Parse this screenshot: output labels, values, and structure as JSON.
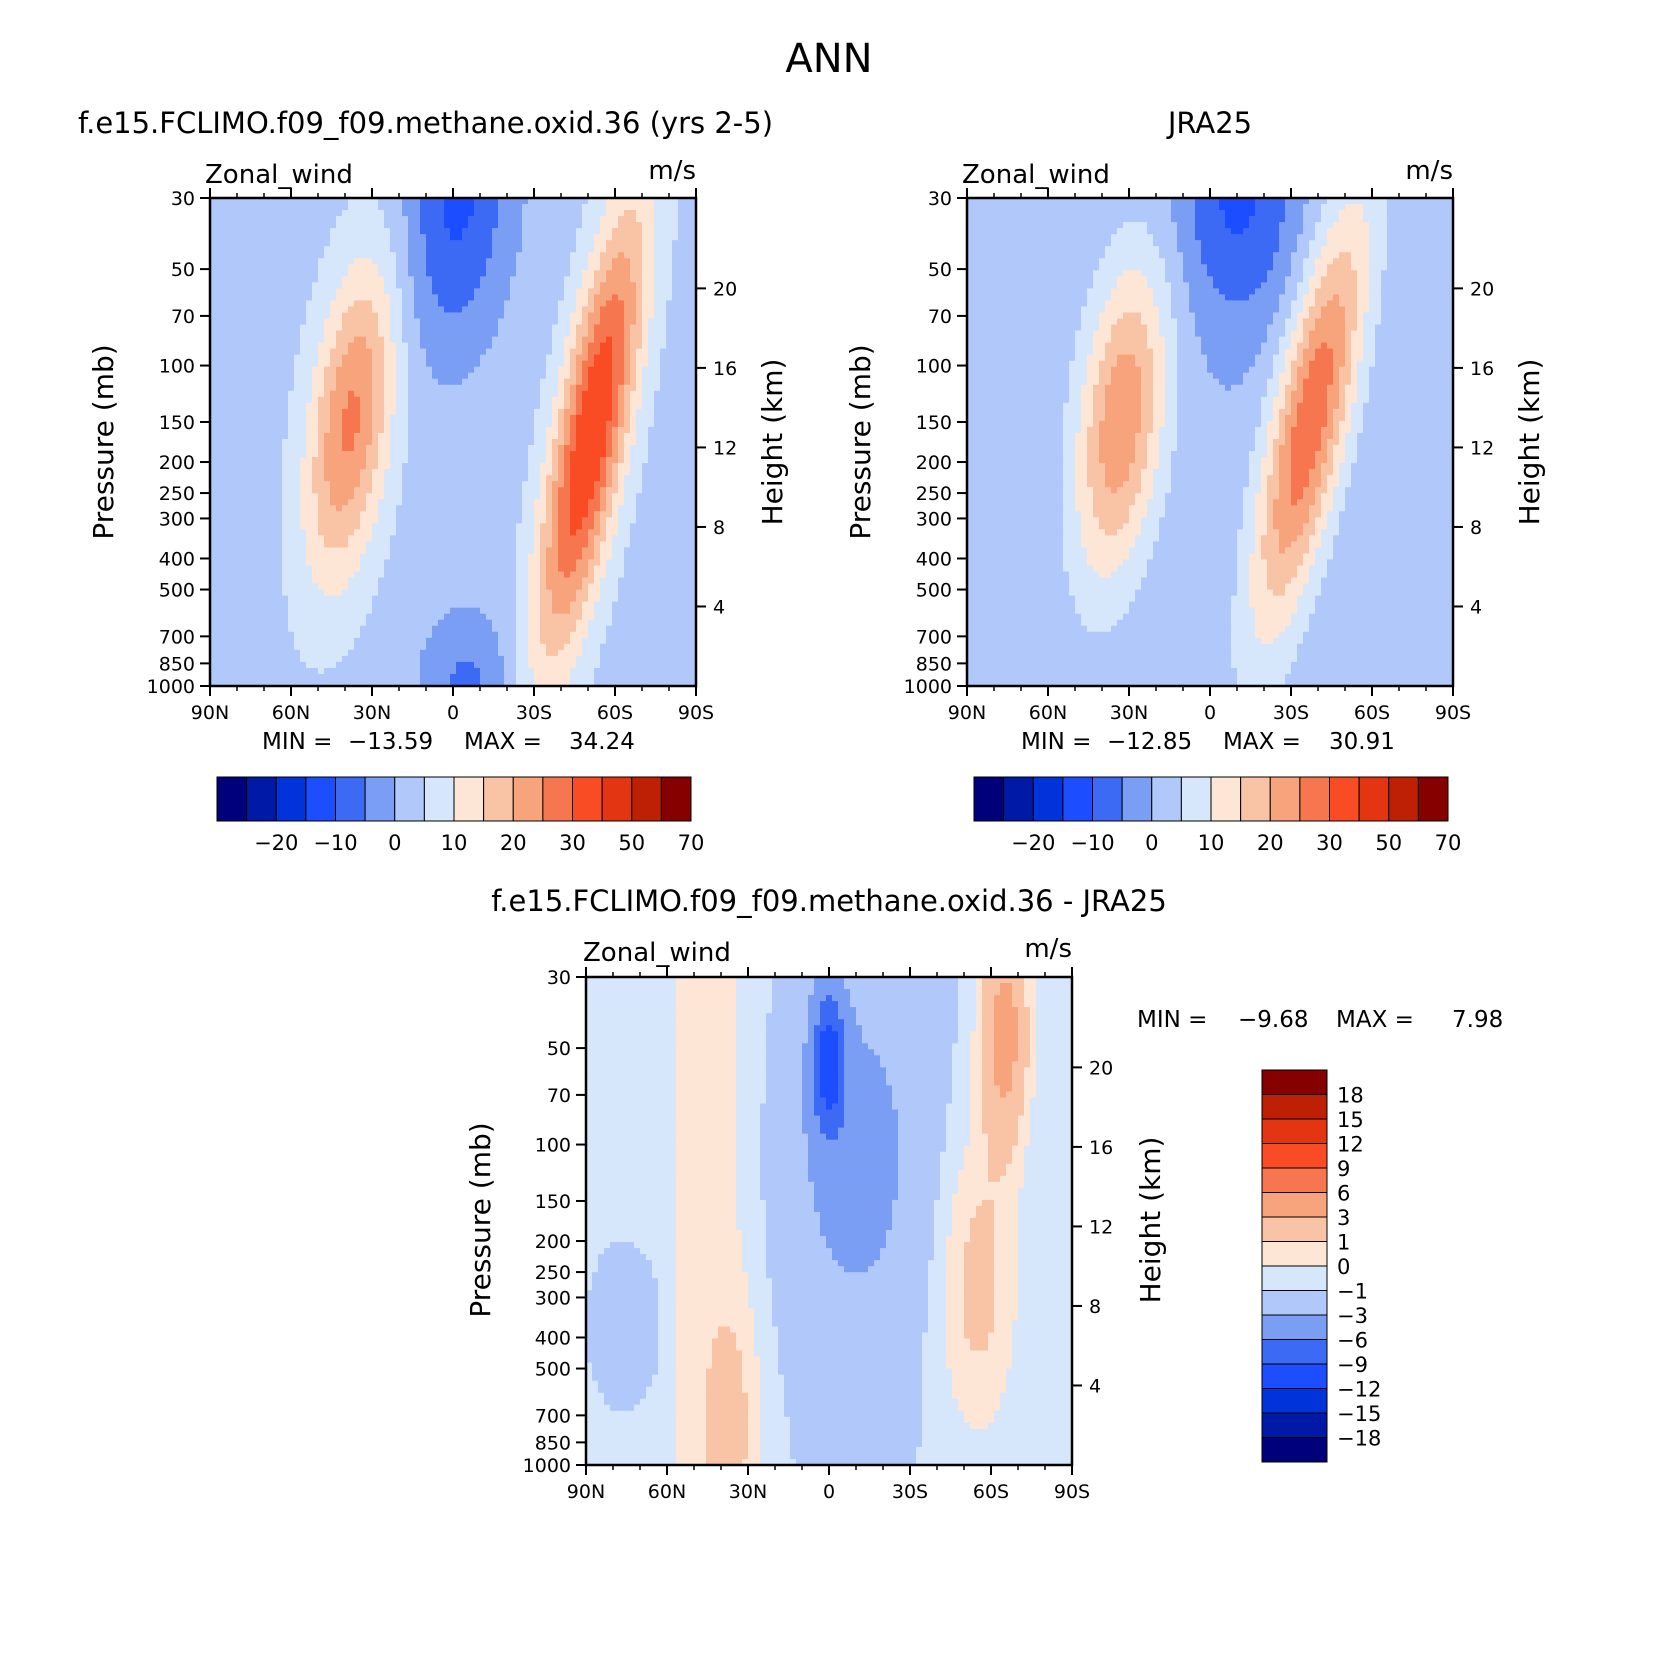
{
  "figure": {
    "title": "ANN"
  },
  "chart_data": [
    {
      "type": "heatmap",
      "title": "f.e15.FCLIMO.f09_f09.methane.oxid.36 (yrs 2-5)",
      "variable": "Zonal_wind",
      "units": "m/s",
      "ylabel": "Pressure (mb)",
      "y2label": "Height (km)",
      "x_ticks": [
        "90N",
        "60N",
        "30N",
        "0",
        "30S",
        "60S",
        "90S"
      ],
      "y_ticks": [
        "30",
        "50",
        "70",
        "100",
        "150",
        "200",
        "250",
        "300",
        "400",
        "500",
        "700",
        "850",
        "1000"
      ],
      "y2_ticks": [
        "20",
        "16",
        "12",
        "8",
        "4"
      ],
      "ylim": [
        1000,
        30
      ],
      "stats": {
        "min_label": "MIN =",
        "min": "-13.59",
        "max_label": "MAX =",
        "max": "34.24"
      },
      "colorbar": {
        "orientation": "horizontal",
        "levels": [
          -25,
          -20,
          -15,
          -10,
          -5,
          0,
          5,
          10,
          15,
          20,
          25,
          30,
          40,
          50,
          60,
          70
        ],
        "tick_labels": [
          "-20",
          "-10",
          "0",
          "10",
          "20",
          "30",
          "50",
          "70"
        ],
        "colors": [
          "#00007a",
          "#0019a6",
          "#0033d9",
          "#1c4dff",
          "#3d6af5",
          "#7b9ef5",
          "#b0c8fa",
          "#d6e6fb",
          "#fde6d5",
          "#f9c3a6",
          "#f7a47c",
          "#f6774f",
          "#fa4c24",
          "#e33512",
          "#bd2005",
          "#870000"
        ]
      },
      "features": [
        {
          "name": "nh-jet",
          "lat": -35,
          "lev": 200,
          "max": 23
        },
        {
          "name": "sh-jet",
          "lat": 50,
          "lev": 200,
          "max": 34
        },
        {
          "name": "tropical-easterly",
          "lat": 0,
          "lev": 30,
          "min": -13
        }
      ]
    },
    {
      "type": "heatmap",
      "title": "JRA25",
      "variable": "Zonal_wind",
      "units": "m/s",
      "ylabel": "Pressure (mb)",
      "y2label": "Height (km)",
      "x_ticks": [
        "90N",
        "60N",
        "30N",
        "0",
        "30S",
        "60S",
        "90S"
      ],
      "y_ticks": [
        "30",
        "50",
        "70",
        "100",
        "150",
        "200",
        "250",
        "300",
        "400",
        "500",
        "700",
        "850",
        "1000"
      ],
      "y2_ticks": [
        "20",
        "16",
        "12",
        "8",
        "4"
      ],
      "ylim": [
        1000,
        30
      ],
      "stats": {
        "min_label": "MIN =",
        "min": "-12.85",
        "max_label": "MAX =",
        "max": "30.91"
      },
      "colorbar": {
        "orientation": "horizontal",
        "levels": [
          -25,
          -20,
          -15,
          -10,
          -5,
          0,
          5,
          10,
          15,
          20,
          25,
          30,
          40,
          50,
          60,
          70
        ],
        "tick_labels": [
          "-20",
          "-10",
          "0",
          "10",
          "20",
          "30",
          "50",
          "70"
        ],
        "colors": [
          "#00007a",
          "#0019a6",
          "#0033d9",
          "#1c4dff",
          "#3d6af5",
          "#7b9ef5",
          "#b0c8fa",
          "#d6e6fb",
          "#fde6d5",
          "#f9c3a6",
          "#f7a47c",
          "#f6774f",
          "#fa4c24",
          "#e33512",
          "#bd2005",
          "#870000"
        ]
      },
      "features": [
        {
          "name": "nh-jet",
          "lat": -35,
          "lev": 200,
          "max": 24
        },
        {
          "name": "sh-jet",
          "lat": 30,
          "lev": 200,
          "max": 31
        },
        {
          "name": "tropical-easterly",
          "lat": 10,
          "lev": 30,
          "min": -12
        }
      ]
    },
    {
      "type": "heatmap",
      "title": "f.e15.FCLIMO.f09_f09.methane.oxid.36 - JRA25",
      "variable": "Zonal_wind",
      "units": "m/s",
      "ylabel": "Pressure (mb)",
      "y2label": "Height (km)",
      "x_ticks": [
        "90N",
        "60N",
        "30N",
        "0",
        "30S",
        "60S",
        "90S"
      ],
      "y_ticks": [
        "30",
        "50",
        "70",
        "100",
        "150",
        "200",
        "250",
        "300",
        "400",
        "500",
        "700",
        "850",
        "1000"
      ],
      "y2_ticks": [
        "20",
        "16",
        "12",
        "8",
        "4"
      ],
      "ylim": [
        1000,
        30
      ],
      "stats": {
        "min_label": "MIN =",
        "min": "-9.68",
        "max_label": "MAX =",
        "max": "7.98"
      },
      "colorbar": {
        "orientation": "vertical",
        "levels": [
          -18,
          -15,
          -12,
          -9,
          -6,
          -3,
          -1,
          0,
          1,
          3,
          6,
          9,
          12,
          15,
          18
        ],
        "tick_labels": [
          "-18",
          "-15",
          "-12",
          "-9",
          "-6",
          "-3",
          "-1",
          "0",
          "1",
          "3",
          "6",
          "9",
          "12",
          "15",
          "18"
        ],
        "colors": [
          "#00007a",
          "#0019a6",
          "#0033d9",
          "#1c4dff",
          "#3d6af5",
          "#7b9ef5",
          "#b0c8fa",
          "#d6e6fb",
          "#fde6d5",
          "#f9c3a6",
          "#f7a47c",
          "#f6774f",
          "#fa4c24",
          "#e33512",
          "#bd2005",
          "#870000"
        ]
      },
      "features": [
        {
          "name": "equatorial-minimum",
          "lat": 0,
          "lev": 50,
          "min": -9.7
        },
        {
          "name": "sh-highlat-maximum",
          "lat": 65,
          "lev": 40,
          "max": 8
        }
      ]
    }
  ]
}
